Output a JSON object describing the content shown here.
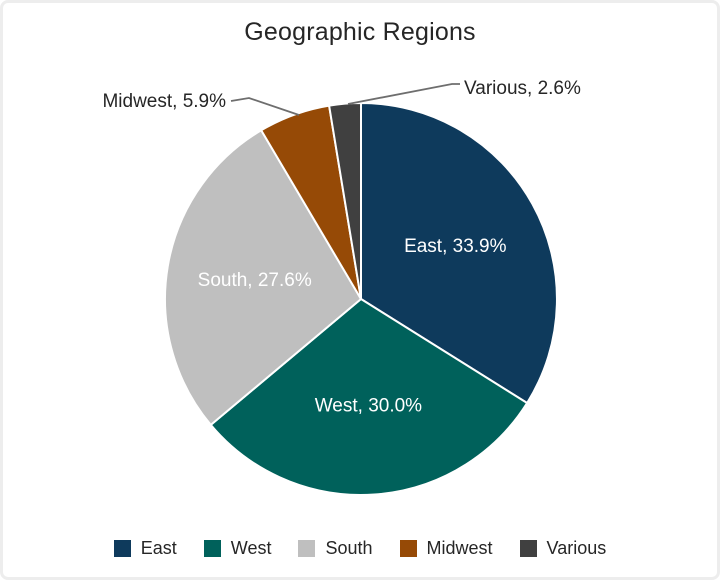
{
  "chart_data": {
    "type": "pie",
    "title": "Geographic Regions",
    "categories": [
      "East",
      "West",
      "South",
      "Midwest",
      "Various"
    ],
    "values": [
      33.9,
      30.0,
      27.6,
      5.9,
      2.6
    ],
    "unit": "%",
    "label_format": "{category}, {value}%",
    "colors": [
      "#0e3a5c",
      "#00615b",
      "#bfbfbf",
      "#964a06",
      "#404040"
    ],
    "label_placement": [
      "inside",
      "inside",
      "inside",
      "outside",
      "outside"
    ],
    "inside_label_color": "#ffffff",
    "outside_label_color": "#262626",
    "leader_line_color": "#6e6e6e",
    "slice_border_color": "#ffffff",
    "start_angle_deg": 0,
    "direction": "clockwise",
    "legend_position": "bottom",
    "title_color": "#262626"
  }
}
